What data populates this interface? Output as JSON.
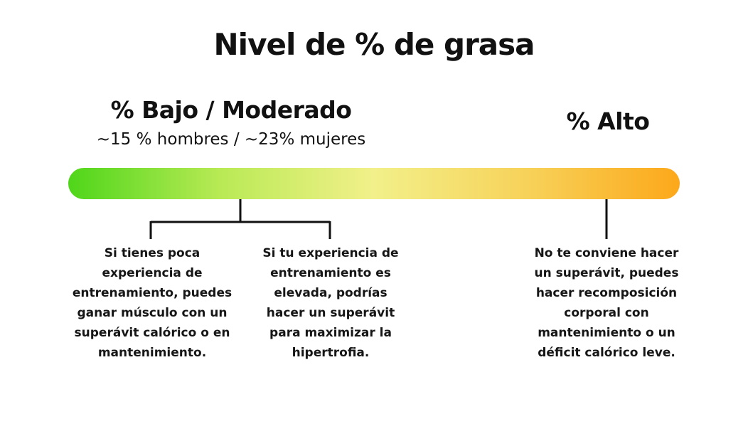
{
  "title": "Nivel de % de grasa",
  "scale": {
    "low_label": "% Bajo / Moderado",
    "low_sublabel": "~15 % hombres / ~23% mujeres",
    "high_label": "% Alto",
    "gradient_colors": [
      "#4fd61a",
      "#b9ea55",
      "#f2f08a",
      "#f7d25a",
      "#fca81a"
    ]
  },
  "notes": [
    {
      "lines": [
        "Si tienes poca",
        "experiencia de",
        "entrenamiento, puedes",
        "ganar músculo con un",
        "superávit calórico o en",
        "mantenimiento."
      ]
    },
    {
      "lines": [
        "Si tu experiencia de",
        "entrenamiento es",
        "elevada, podrías",
        "hacer un superávit",
        "para maximizar la",
        "hipertrofia."
      ]
    },
    {
      "lines": [
        "No te conviene hacer",
        "un superávit, puedes",
        "hacer recomposición",
        "corporal con",
        "mantenimiento o un",
        "déficit calórico leve."
      ]
    }
  ]
}
